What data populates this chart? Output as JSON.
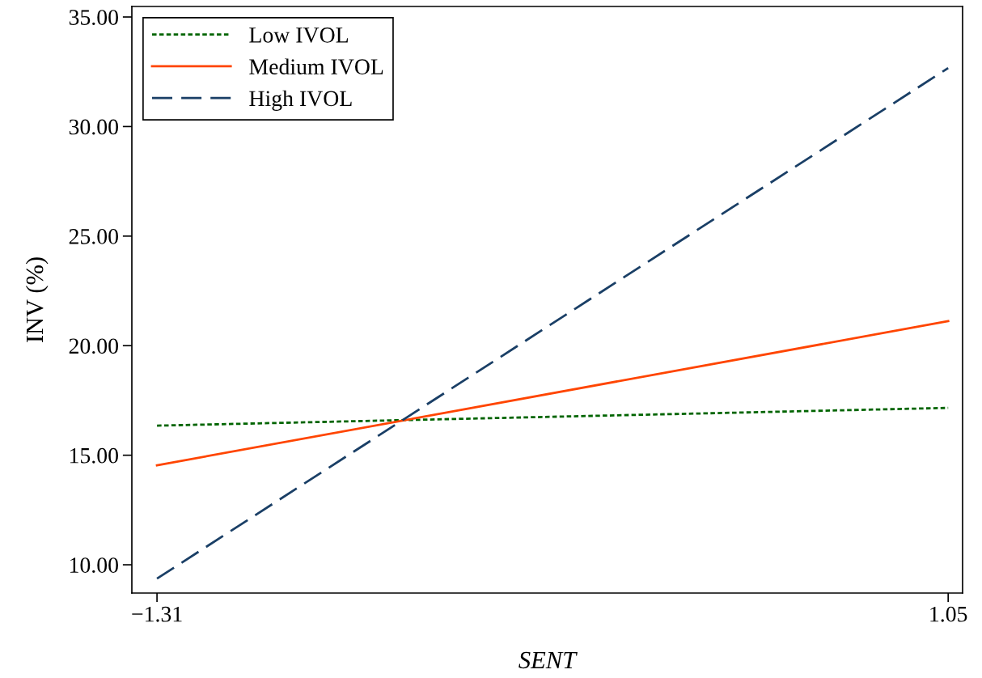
{
  "chart_data": {
    "type": "line",
    "xlabel": "SENT",
    "ylabel": "INV (%)",
    "x": [
      -1.31,
      1.05
    ],
    "series": [
      {
        "name": "Low IVOL",
        "color": "#006400",
        "line_style": "dotted",
        "values": [
          16.35,
          17.16
        ]
      },
      {
        "name": "Medium IVOL",
        "color": "#ff4500",
        "line_style": "solid",
        "values": [
          14.54,
          21.12
        ]
      },
      {
        "name": "High IVOL",
        "color": "#1a3f66",
        "line_style": "dashed",
        "values": [
          9.37,
          32.67
        ]
      }
    ],
    "xlim": [
      -1.385,
      1.093
    ],
    "ylim": [
      8.71,
      35.48
    ],
    "xticks": [
      {
        "value": -1.31,
        "label": "−1.31"
      },
      1.05
    ],
    "yticks": [
      {
        "value": 10,
        "label": "10.00"
      },
      {
        "value": 15,
        "label": "15.00"
      },
      {
        "value": 20,
        "label": "20.00"
      },
      {
        "value": 25,
        "label": "25.00"
      },
      {
        "value": 30,
        "label": "30.00"
      },
      {
        "value": 35,
        "label": "35.00"
      }
    ],
    "grid": false,
    "legend": "top left",
    "marker": "none"
  }
}
